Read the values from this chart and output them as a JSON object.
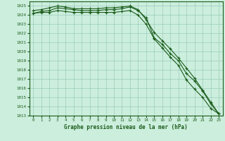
{
  "title": "Graphe pression niveau de la mer (hPa)",
  "bg_color": "#cceedd",
  "grid_color": "#99ccbb",
  "line_color": "#1a5c1a",
  "x_ticks": [
    0,
    1,
    2,
    3,
    4,
    5,
    6,
    7,
    8,
    9,
    10,
    11,
    12,
    13,
    14,
    15,
    16,
    17,
    18,
    19,
    20,
    21,
    22,
    23
  ],
  "ylim": [
    1013,
    1025.5
  ],
  "yticks": [
    1013,
    1014,
    1015,
    1016,
    1017,
    1018,
    1019,
    1020,
    1021,
    1022,
    1023,
    1024,
    1025
  ],
  "series": [
    [
      1024.2,
      1024.4,
      1024.5,
      1024.8,
      1024.7,
      1024.6,
      1024.5,
      1024.5,
      1024.5,
      1024.6,
      1024.6,
      1024.7,
      1024.9,
      1024.5,
      1023.7,
      1021.5,
      1020.8,
      1019.8,
      1019.0,
      1017.6,
      1016.8,
      1015.7,
      1014.3,
      1013.2
    ],
    [
      1024.5,
      1024.6,
      1024.8,
      1025.0,
      1024.9,
      1024.7,
      1024.7,
      1024.7,
      1024.7,
      1024.8,
      1024.8,
      1024.9,
      1025.0,
      1024.6,
      1023.5,
      1022.1,
      1021.2,
      1020.3,
      1019.3,
      1018.2,
      1017.1,
      1015.8,
      1014.5,
      1013.2
    ],
    [
      1024.2,
      1024.3,
      1024.3,
      1024.5,
      1024.4,
      1024.3,
      1024.3,
      1024.3,
      1024.3,
      1024.3,
      1024.3,
      1024.4,
      1024.5,
      1024.0,
      1023.0,
      1021.4,
      1020.4,
      1019.4,
      1018.5,
      1016.9,
      1015.9,
      1015.0,
      1013.8,
      1013.2
    ]
  ]
}
